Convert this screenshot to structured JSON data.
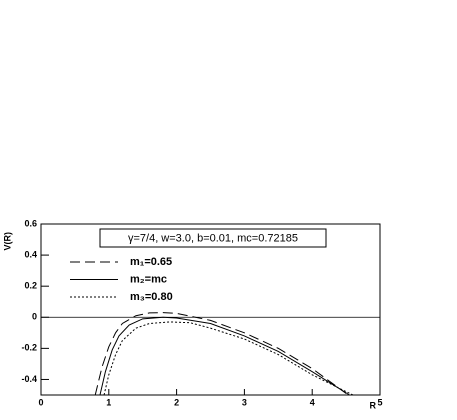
{
  "chart_data": {
    "type": "line",
    "annotation": "γ=7/4, w=3.0, b=0.01, mc=0.72185",
    "xlabel": "R",
    "ylabel": "V(R)",
    "xlim": [
      0,
      5
    ],
    "ylim": [
      -0.5,
      0.6
    ],
    "xticks": [
      0,
      1,
      2,
      3,
      4,
      5
    ],
    "yticks": [
      -0.4,
      -0.2,
      0,
      0.2,
      0.4,
      0.6
    ],
    "series": [
      {
        "name": "m₁=0.65",
        "color": "#000000",
        "dash": "10,5",
        "x": [
          0.8,
          0.9,
          1.0,
          1.1,
          1.2,
          1.4,
          1.6,
          1.8,
          2.0,
          2.5,
          3.0,
          3.5,
          4.0,
          4.5
        ],
        "values": [
          -0.5,
          -0.32,
          -0.19,
          -0.1,
          -0.04,
          0.01,
          0.028,
          0.03,
          0.025,
          -0.02,
          -0.1,
          -0.2,
          -0.33,
          -0.49
        ]
      },
      {
        "name": "m₂=mc",
        "color": "#000000",
        "dash": "none",
        "x": [
          0.87,
          0.95,
          1.05,
          1.15,
          1.3,
          1.5,
          1.8,
          2.0,
          2.5,
          3.0,
          3.5,
          4.0,
          4.55
        ],
        "values": [
          -0.5,
          -0.35,
          -0.21,
          -0.12,
          -0.05,
          -0.01,
          0.0,
          -0.005,
          -0.04,
          -0.12,
          -0.22,
          -0.35,
          -0.5
        ]
      },
      {
        "name": "m₃=0.80",
        "color": "#000000",
        "dash": "2,2",
        "x": [
          0.93,
          1.0,
          1.1,
          1.2,
          1.4,
          1.6,
          1.9,
          2.2,
          2.5,
          3.0,
          3.5,
          4.0,
          4.6
        ],
        "values": [
          -0.5,
          -0.37,
          -0.24,
          -0.15,
          -0.07,
          -0.04,
          -0.03,
          -0.035,
          -0.07,
          -0.14,
          -0.24,
          -0.37,
          -0.5
        ]
      }
    ]
  }
}
